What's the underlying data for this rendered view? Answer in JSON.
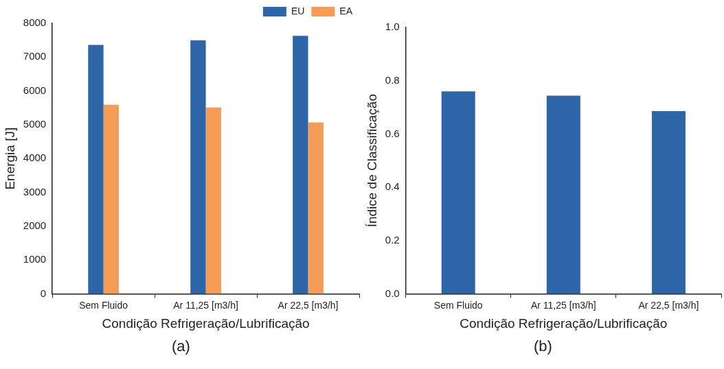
{
  "chart_data": [
    {
      "type": "bar",
      "categories": [
        "Sem Fluido",
        "Ar 11,25 [m3/h]",
        "Ar 22,5 [m3/h]"
      ],
      "xlabel": "Condição Refrigeração/Lubrificação",
      "ylabel": "Energia [J]",
      "ylim": [
        0,
        8000
      ],
      "yticks": [
        0,
        1000,
        2000,
        3000,
        4000,
        5000,
        6000,
        7000,
        8000
      ],
      "grid": false,
      "legend": "top right",
      "annotations": [
        "(a)"
      ],
      "series": [
        {
          "name": "EU",
          "color": "#2e64a8",
          "values": [
            7360,
            7500,
            7630
          ]
        },
        {
          "name": "EA",
          "color": "#f59d56",
          "values": [
            5590,
            5510,
            5070
          ]
        }
      ]
    },
    {
      "type": "bar",
      "categories": [
        "Sem Fluido",
        "Ar 11,25 [m3/h]",
        "Ar 22,5 [m3/h]"
      ],
      "xlabel": "Condição Refrigeração/Lubrificação",
      "ylabel": "Índice de Classificação",
      "ylim": [
        0,
        1.0
      ],
      "yticks": [
        {
          "value": 0,
          "label": "0.0"
        },
        {
          "value": 0.2,
          "label": "0.2"
        },
        {
          "value": 0.4,
          "label": "0.4"
        },
        {
          "value": 0.6,
          "label": "0.6"
        },
        {
          "value": 0.8,
          "label": "0.8"
        },
        {
          "value": 1.0,
          "label": "1.0"
        }
      ],
      "grid": false,
      "annotations": [
        "(b)"
      ],
      "series": [
        {
          "color": "#2e64a8",
          "values": [
            0.76,
            0.744,
            0.686
          ]
        }
      ]
    }
  ]
}
